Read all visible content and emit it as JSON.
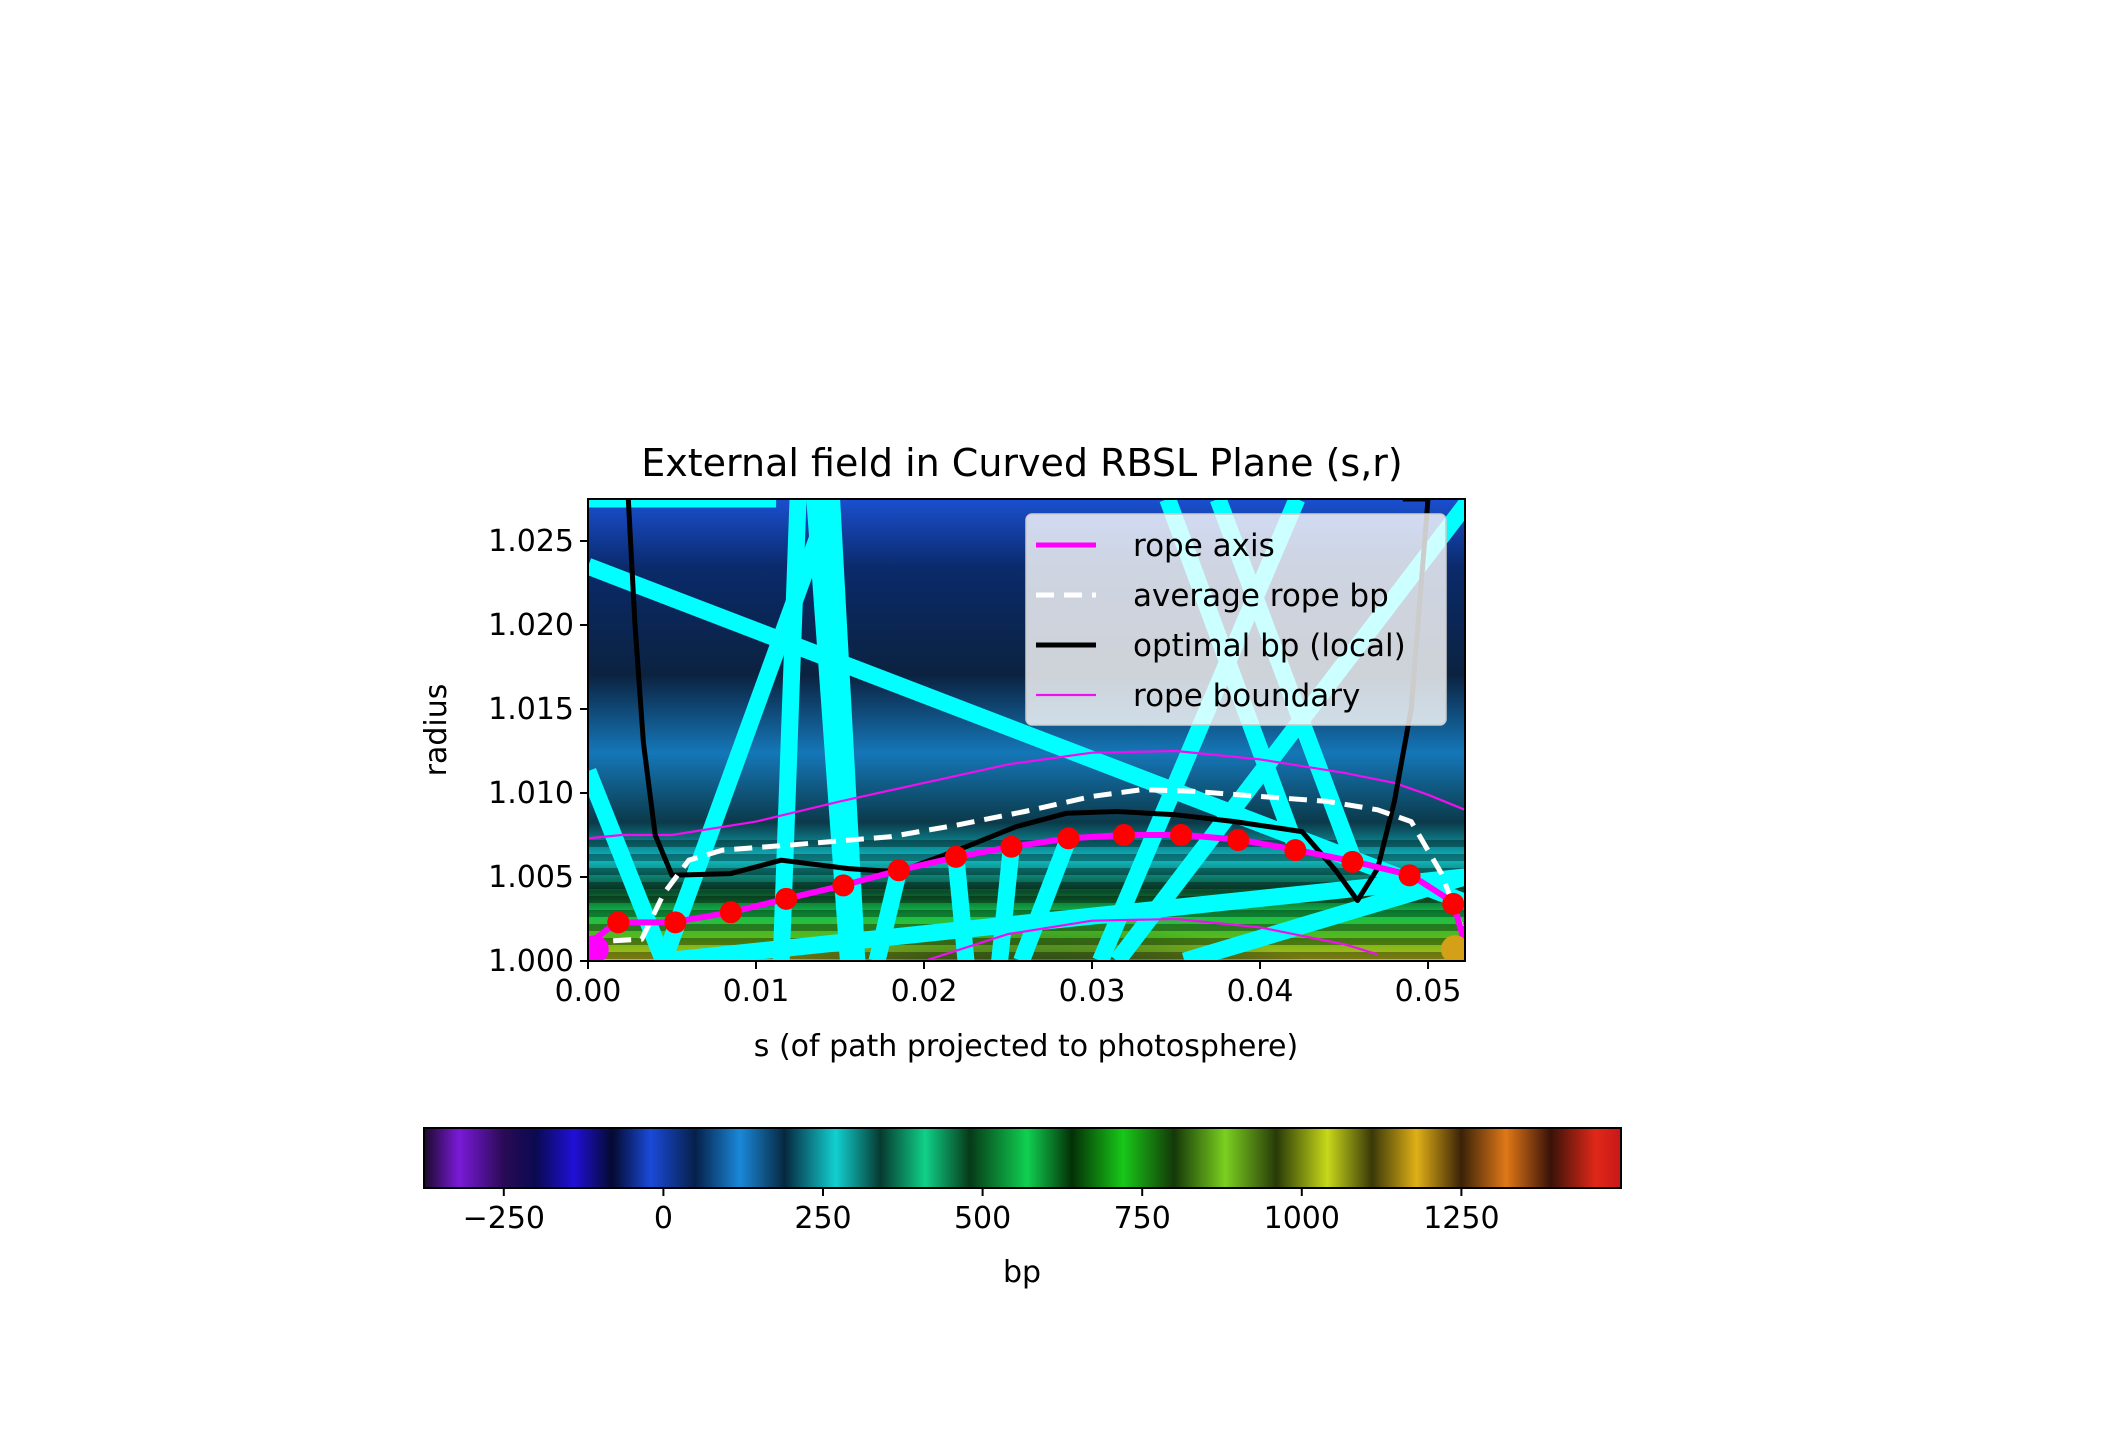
{
  "chart_data": {
    "type": "heatmap",
    "title": "External field in Curved RBSL Plane (s,r)",
    "xlabel": "s (of path projected to photosphere)",
    "ylabel": "radius",
    "xlim": [
      0.0,
      0.0522
    ],
    "ylim": [
      1.0,
      1.0275
    ],
    "x_ticks": [
      "0.00",
      "0.01",
      "0.02",
      "0.03",
      "0.04",
      "0.05"
    ],
    "x_tick_values": [
      0.0,
      0.01,
      0.02,
      0.03,
      0.04,
      0.05
    ],
    "y_ticks": [
      "1.000",
      "1.005",
      "1.010",
      "1.015",
      "1.020",
      "1.025"
    ],
    "y_tick_values": [
      1.0,
      1.005,
      1.01,
      1.015,
      1.02,
      1.025
    ],
    "legend": {
      "placement": "upper right",
      "entries": [
        {
          "label": "rope axis",
          "color": "#ff00ff",
          "style": "solid-thick"
        },
        {
          "label": "average rope bp",
          "color": "#ffffff",
          "style": "dashed"
        },
        {
          "label": "optimal bp (local)",
          "color": "#000000",
          "style": "solid-thick"
        },
        {
          "label": "rope boundary",
          "color": "#ee10ee",
          "style": "solid-thin"
        }
      ]
    },
    "series": [
      {
        "name": "rope axis",
        "color": "#ff00ff",
        "x": [
          0.0,
          0.0017,
          0.005,
          0.0085,
          0.0118,
          0.0152,
          0.0185,
          0.022,
          0.0252,
          0.0286,
          0.0319,
          0.0355,
          0.0389,
          0.0422,
          0.0457,
          0.049,
          0.0515,
          0.0522
        ],
        "y": [
          1.001,
          1.0023,
          1.0023,
          1.0029,
          1.0037,
          1.0045,
          1.0054,
          1.0062,
          1.0068,
          1.0073,
          1.0075,
          1.0075,
          1.0072,
          1.0066,
          1.0059,
          1.0051,
          1.0035,
          1.001
        ]
      },
      {
        "name": "average rope bp",
        "color": "#ffffff",
        "x": [
          0.0015,
          0.0032,
          0.0045,
          0.006,
          0.008,
          0.012,
          0.018,
          0.022,
          0.026,
          0.03,
          0.033,
          0.036,
          0.04,
          0.044,
          0.047,
          0.049,
          0.0508,
          0.052
        ],
        "y": [
          1.0012,
          1.0013,
          1.004,
          1.006,
          1.0066,
          1.0069,
          1.0074,
          1.0081,
          1.0089,
          1.0098,
          1.0102,
          1.0101,
          1.0098,
          1.0095,
          1.009,
          1.0083,
          1.0052,
          1.002
        ]
      },
      {
        "name": "optimal bp (local)",
        "color": "#000000",
        "x": [
          0.0024,
          0.0028,
          0.0033,
          0.004,
          0.005,
          0.0085,
          0.0115,
          0.0155,
          0.0185,
          0.0225,
          0.0255,
          0.0285,
          0.0315,
          0.035,
          0.0385,
          0.0425,
          0.0445,
          0.0458,
          0.047,
          0.048,
          0.049,
          0.05,
          0.0485
        ],
        "y": [
          1.0275,
          1.02,
          1.013,
          1.0075,
          1.0051,
          1.0052,
          1.006,
          1.0055,
          1.0053,
          1.0068,
          1.008,
          1.0088,
          1.0089,
          1.0087,
          1.0083,
          1.0077,
          1.0054,
          1.0036,
          1.0055,
          1.0095,
          1.015,
          1.0275,
          1.0275
        ]
      },
      {
        "name": "rope boundary",
        "color": "#ee10ee",
        "x": [
          0.0,
          0.002,
          0.005,
          0.01,
          0.015,
          0.02,
          0.025,
          0.03,
          0.035,
          0.04,
          0.045,
          0.048,
          0.05,
          0.0522
        ],
        "y": [
          1.0073,
          1.0075,
          1.0075,
          1.0083,
          1.0095,
          1.0106,
          1.0117,
          1.0124,
          1.0125,
          1.012,
          1.0112,
          1.0106,
          1.0099,
          1.009
        ]
      },
      {
        "name": "rope boundary (inner)",
        "color": "#ee10ee",
        "x": [
          0.02,
          0.025,
          0.03,
          0.035,
          0.04,
          0.045,
          0.047
        ],
        "y": [
          1.0,
          1.0016,
          1.0024,
          1.0025,
          1.002,
          1.001,
          1.0004
        ]
      },
      {
        "name": "rope axis markers",
        "color": "#ff0000",
        "x": [
          0.0018,
          0.0052,
          0.0085,
          0.0118,
          0.0152,
          0.0185,
          0.0219,
          0.0252,
          0.0286,
          0.0319,
          0.0353,
          0.0387,
          0.0421,
          0.0455,
          0.0489,
          0.0515
        ],
        "y": [
          1.0023,
          1.0023,
          1.0029,
          1.0037,
          1.0045,
          1.0054,
          1.0062,
          1.0068,
          1.0073,
          1.0075,
          1.0075,
          1.0072,
          1.0066,
          1.0059,
          1.0051,
          1.0034
        ]
      }
    ],
    "field_lines": {
      "color": "#00ffff",
      "segments": [
        [
          [
            0.0,
            1.0235
          ],
          [
            0.0522,
            1.0035
          ]
        ],
        [
          [
            0.0,
            1.0113
          ],
          [
            0.0045,
            1.0
          ]
        ],
        [
          [
            0.0045,
            1.0
          ],
          [
            0.0145,
            1.0275
          ]
        ],
        [
          [
            0.0125,
            1.0275
          ],
          [
            0.0115,
            1.0
          ]
        ],
        [
          [
            0.0112,
            1.0275
          ],
          [
            0.0,
            1.0275
          ]
        ],
        [
          [
            0.0135,
            1.0275
          ],
          [
            0.0155,
            1.0
          ]
        ],
        [
          [
            0.0145,
            1.0275
          ],
          [
            0.016,
            1.0
          ]
        ],
        [
          [
            0.0172,
            1.0
          ],
          [
            0.0185,
            1.0054
          ]
        ],
        [
          [
            0.0225,
            1.0
          ],
          [
            0.0219,
            1.0062
          ]
        ],
        [
          [
            0.0245,
            1.0
          ],
          [
            0.0252,
            1.0068
          ]
        ],
        [
          [
            0.0258,
            1.0
          ],
          [
            0.0286,
            1.0073
          ]
        ],
        [
          [
            0.0315,
            1.0
          ],
          [
            0.0525,
            1.0275
          ]
        ],
        [
          [
            0.0305,
            1.0
          ],
          [
            0.0422,
            1.0275
          ]
        ],
        [
          [
            0.0355,
            1.0
          ],
          [
            0.0522,
            1.005
          ]
        ],
        [
          [
            0.0345,
            1.0275
          ],
          [
            0.0422,
            1.0066
          ]
        ],
        [
          [
            0.0375,
            1.0275
          ],
          [
            0.0456,
            1.0059
          ]
        ],
        [
          [
            0.0045,
            1.0
          ],
          [
            0.0522,
            1.005
          ]
        ]
      ]
    },
    "endpoint_markers": [
      {
        "x": 0.0004,
        "y": 1.0007,
        "color": "#ff00ff"
      },
      {
        "x": 0.0516,
        "y": 1.0007,
        "color": "#d4a017"
      }
    ],
    "colorbar": {
      "label": "bp",
      "min": -375,
      "max": 1500,
      "ticks": [
        "−250",
        "0",
        "250",
        "500",
        "750",
        "1000",
        "1250"
      ],
      "tick_values": [
        -250,
        0,
        250,
        500,
        750,
        1000,
        1250
      ],
      "colormap_stops": [
        {
          "v": -375,
          "c": "#1a0a2a"
        },
        {
          "v": -320,
          "c": "#7a1ad8"
        },
        {
          "v": -250,
          "c": "#2a0a55"
        },
        {
          "v": -200,
          "c": "#0a0a50"
        },
        {
          "v": -140,
          "c": "#2010d8"
        },
        {
          "v": -80,
          "c": "#040a30"
        },
        {
          "v": -20,
          "c": "#1a4ad8"
        },
        {
          "v": 50,
          "c": "#06204a"
        },
        {
          "v": 120,
          "c": "#1a88d8"
        },
        {
          "v": 190,
          "c": "#062840"
        },
        {
          "v": 270,
          "c": "#12d0d0"
        },
        {
          "v": 340,
          "c": "#063a30"
        },
        {
          "v": 410,
          "c": "#10d088"
        },
        {
          "v": 480,
          "c": "#063a18"
        },
        {
          "v": 570,
          "c": "#10d050"
        },
        {
          "v": 640,
          "c": "#043006"
        },
        {
          "v": 720,
          "c": "#18c818"
        },
        {
          "v": 800,
          "c": "#143808"
        },
        {
          "v": 880,
          "c": "#7ad020"
        },
        {
          "v": 960,
          "c": "#283a08"
        },
        {
          "v": 1040,
          "c": "#c8d81a"
        },
        {
          "v": 1110,
          "c": "#3a3808"
        },
        {
          "v": 1180,
          "c": "#e0b018"
        },
        {
          "v": 1250,
          "c": "#3a2208"
        },
        {
          "v": 1320,
          "c": "#e07818"
        },
        {
          "v": 1390,
          "c": "#3a1208"
        },
        {
          "v": 1460,
          "c": "#e02818"
        },
        {
          "v": 1500,
          "c": "#c81818"
        }
      ]
    }
  }
}
